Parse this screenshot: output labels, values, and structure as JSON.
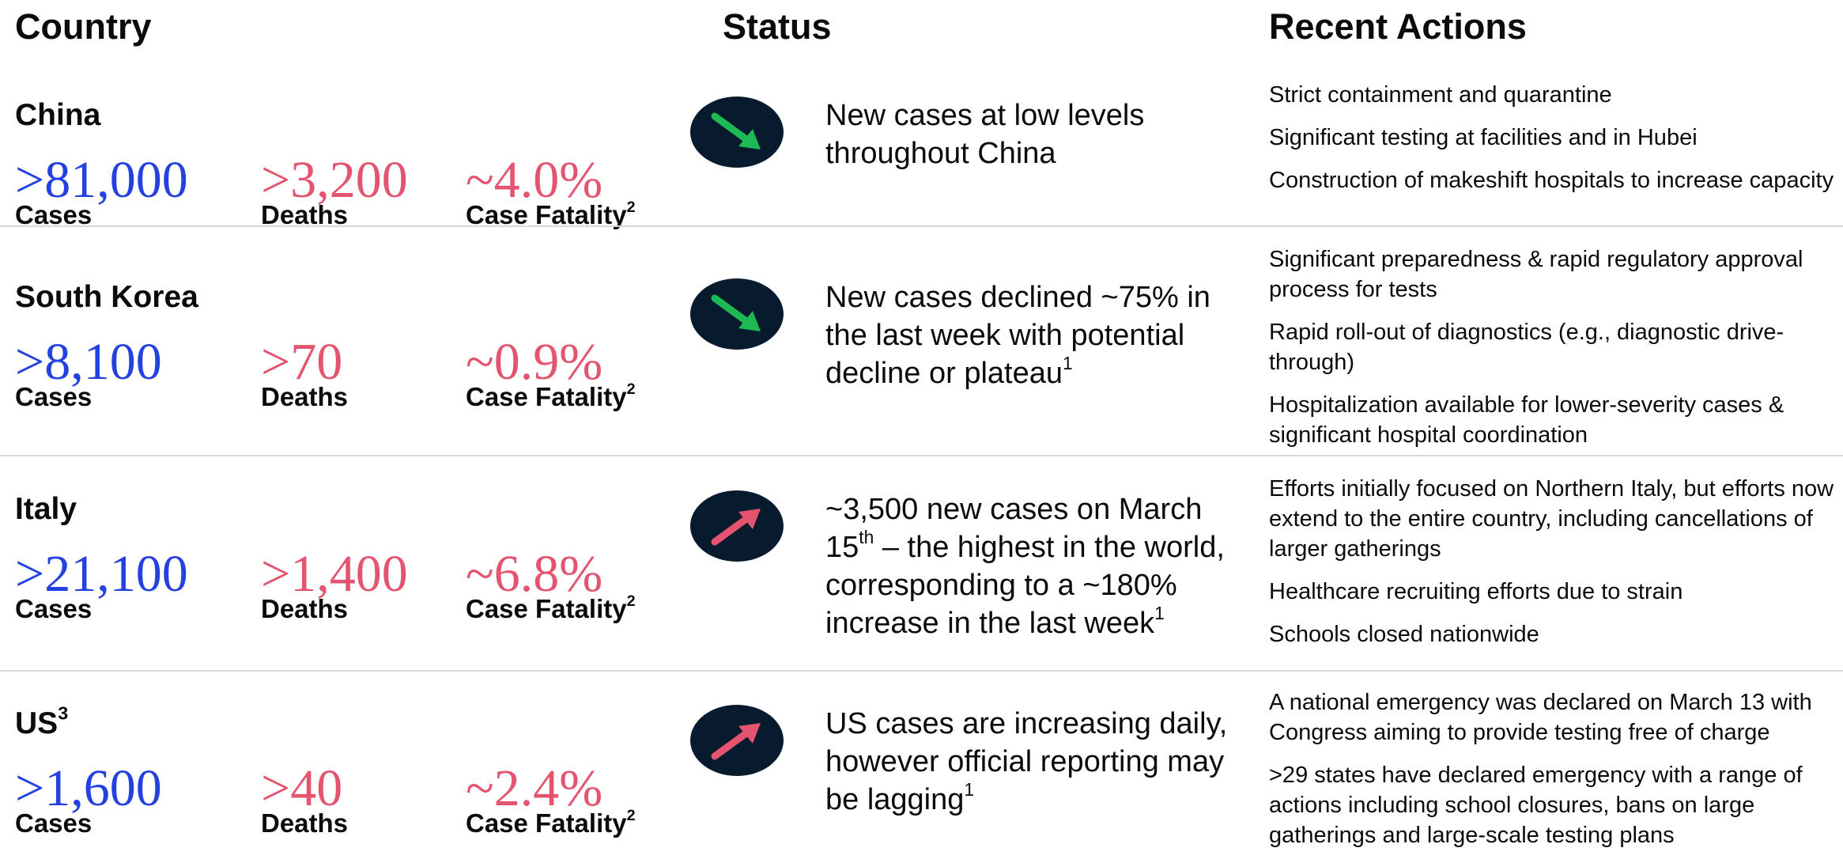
{
  "headers": [
    "Country",
    "Status",
    "Recent Actions"
  ],
  "rows": [
    {
      "country": "China",
      "stats": [
        {
          "value": ">81,000",
          "label": "Cases"
        },
        {
          "value": ">3,200",
          "label": "Deaths"
        },
        {
          "value": "~4.0%",
          "label": "Case Fatality",
          "sup": "2"
        }
      ],
      "status": [
        {
          "text": "New cases at low levels throughout China"
        }
      ],
      "actions": [
        "Strict containment and quarantine",
        "Significant testing at facilities and in Hubei",
        "Construction of makeshift hospitals to increase capacity"
      ]
    },
    {
      "country": "South Korea",
      "stats": [
        {
          "value": ">8,100",
          "label": "Cases"
        },
        {
          "value": ">70",
          "label": "Deaths"
        },
        {
          "value": "~0.9%",
          "label": "Case Fatality",
          "sup": "2"
        }
      ],
      "status": [
        {
          "text": "New cases declined ~75% in the last week with potential decline or plateau"
        },
        {
          "sup": "1"
        }
      ],
      "actions": [
        "Significant preparedness & rapid regulatory approval process for tests",
        "Rapid roll-out of diagnostics (e.g., diagnostic drive-through)",
        "Hospitalization available for lower-severity cases & significant hospital coordination"
      ]
    },
    {
      "country": "Italy",
      "stats": [
        {
          "value": ">21,100",
          "label": "Cases"
        },
        {
          "value": ">1,400",
          "label": "Deaths"
        },
        {
          "value": "~6.8%",
          "label": "Case Fatality",
          "sup": "2"
        }
      ],
      "status": [
        {
          "text": "~3,500 new cases on March 15"
        },
        {
          "sup": "th"
        },
        {
          "text": " – the highest in the world, corresponding to a ~180% increase in the last week"
        },
        {
          "sup": "1"
        }
      ],
      "actions": [
        "Efforts initially focused on Northern Italy, but efforts now extend to the entire country, including cancellations of larger gatherings",
        "Healthcare recruiting efforts due to strain",
        "Schools closed nationwide"
      ]
    },
    {
      "country": "US",
      "country_sup": "3",
      "stats": [
        {
          "value": ">1,600",
          "label": "Cases"
        },
        {
          "value": ">40",
          "label": "Deaths"
        },
        {
          "value": "~2.4%",
          "label": "Case Fatality",
          "sup": "2"
        }
      ],
      "status": [
        {
          "text": "US cases are increasing daily, however official reporting may be lagging"
        },
        {
          "sup": "1"
        }
      ],
      "actions": [
        "A national emergency was declared on March 13 with Congress aiming to provide testing free of charge",
        ">29 states have declared emergency with a range of actions including school closures, bans on large gatherings and large-scale testing plans"
      ]
    }
  ]
}
